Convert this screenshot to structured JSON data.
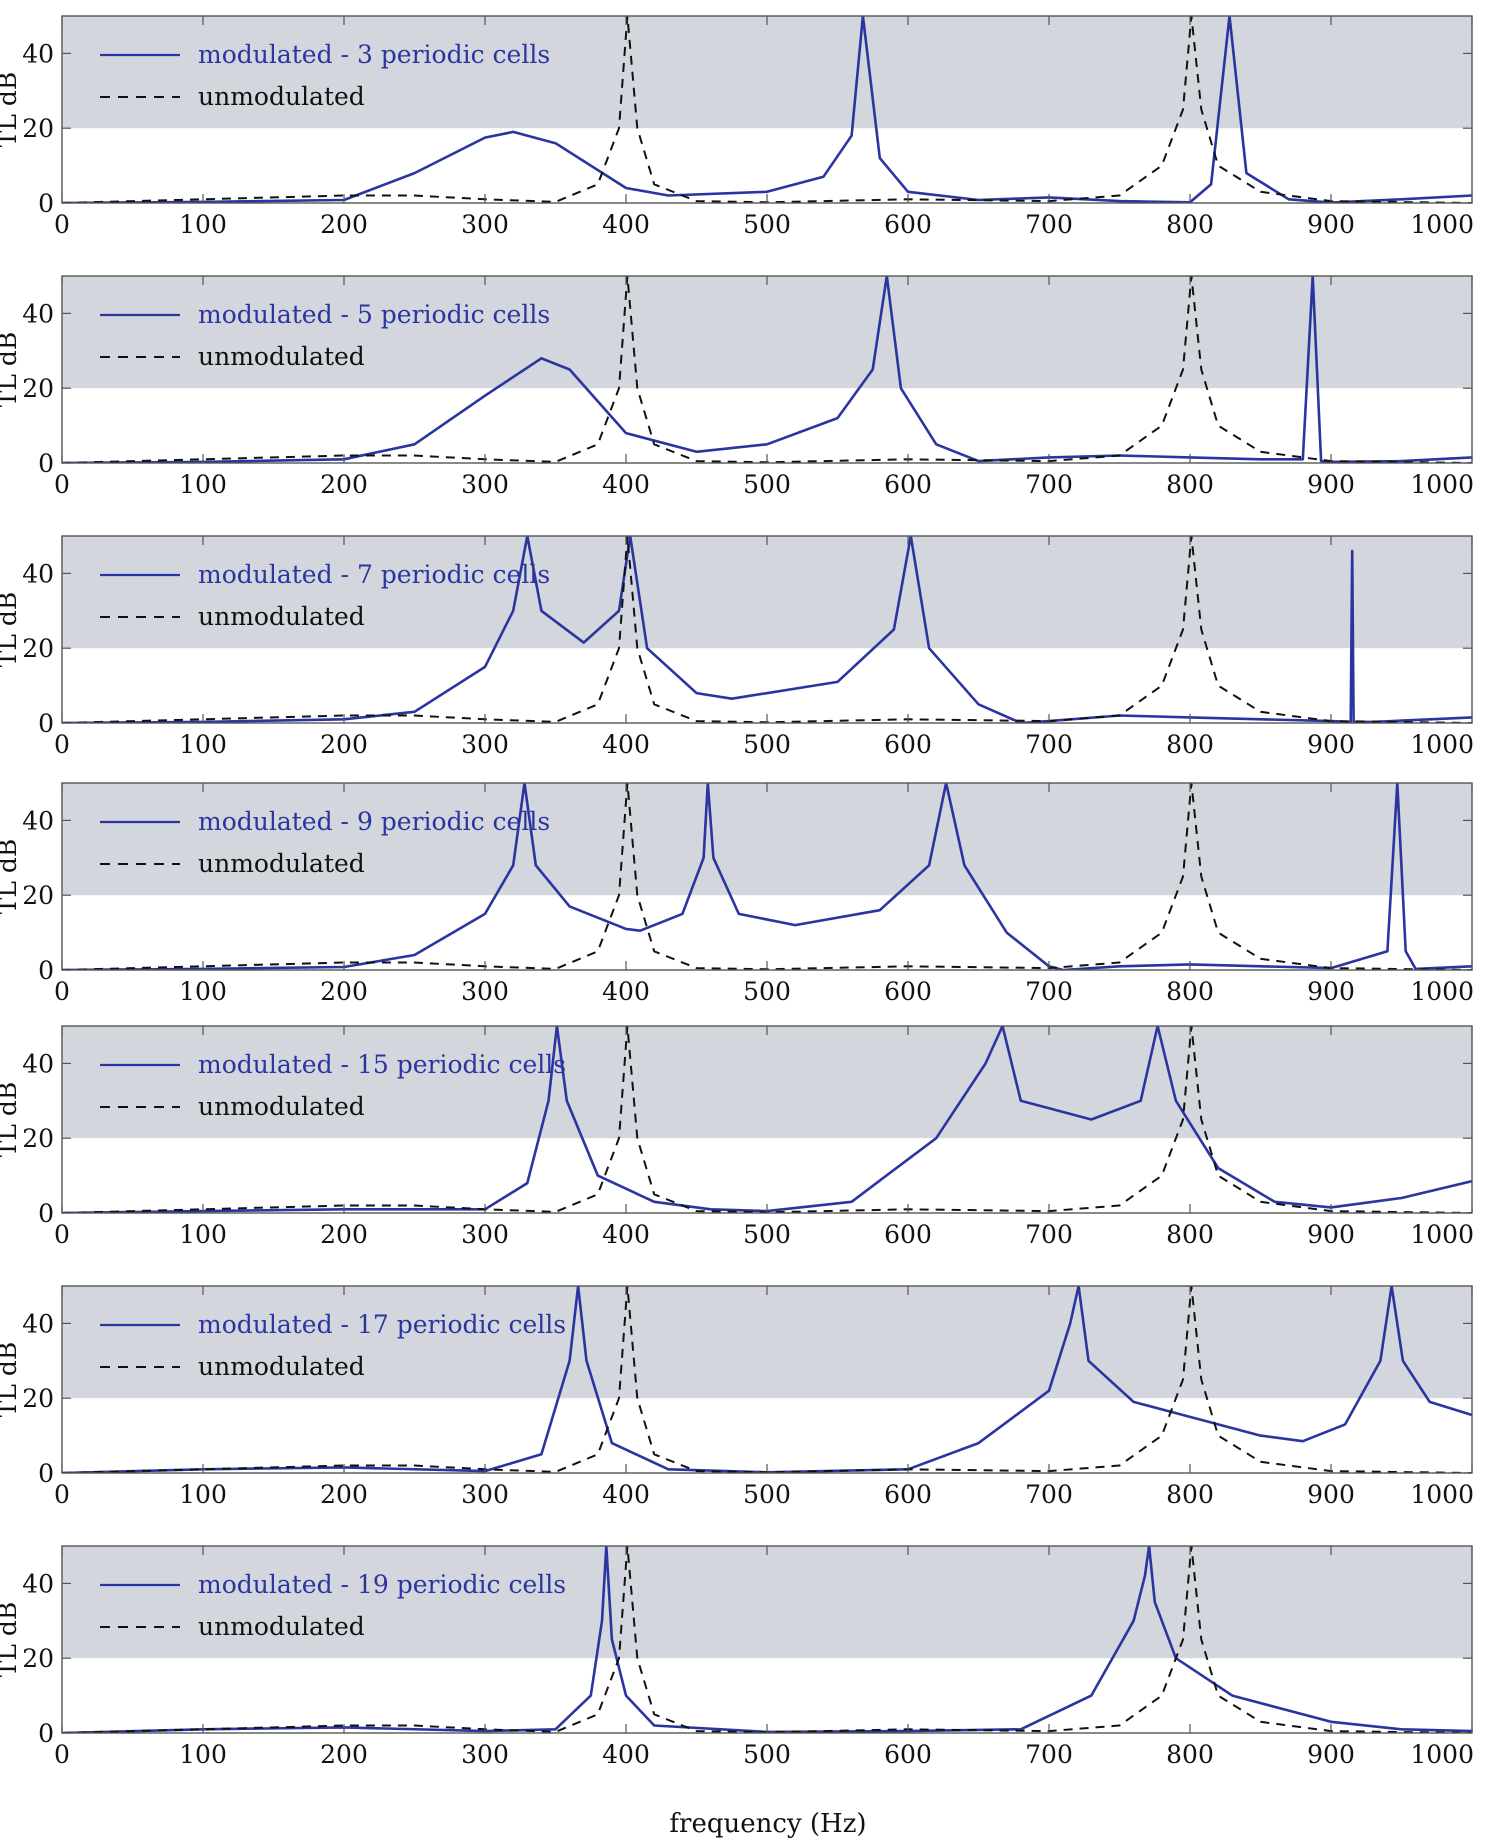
{
  "colors": {
    "modulated": "#2a35a0",
    "unmodulated": "#111111",
    "band": "#d3d6dc",
    "axis": "#555555"
  },
  "xlabel": "frequency (Hz)",
  "chart_data": [
    {
      "type": "line",
      "xlabel": "",
      "ylabel": "TL  dB",
      "xlim": [
        0,
        1000
      ],
      "ylim": [
        0,
        50
      ],
      "xticks": [
        0,
        100,
        200,
        300,
        400,
        500,
        600,
        700,
        800,
        900,
        1000
      ],
      "yticks": [
        0,
        20,
        40
      ],
      "shaded_band": [
        20,
        50
      ],
      "legend_position": "top-left",
      "series": [
        {
          "name": "modulated - 3 periodic cells",
          "style": "solid",
          "x": [
            0,
            100,
            200,
            250,
            300,
            320,
            350,
            400,
            430,
            500,
            540,
            560,
            568,
            580,
            600,
            650,
            700,
            750,
            800,
            815,
            828,
            840,
            870,
            900,
            950,
            1000
          ],
          "y": [
            0,
            0.3,
            0.8,
            8,
            17.5,
            19,
            16,
            4,
            2,
            3,
            7,
            18,
            50,
            12,
            3,
            0.8,
            1.5,
            0.5,
            0.2,
            5,
            50,
            8,
            1,
            0.1,
            1,
            2
          ]
        },
        {
          "name": "unmodulated",
          "style": "dashed",
          "x": [
            0,
            100,
            200,
            250,
            300,
            350,
            380,
            395,
            401,
            408,
            420,
            450,
            500,
            600,
            700,
            750,
            780,
            795,
            801,
            808,
            820,
            850,
            900,
            1000
          ],
          "y": [
            0,
            1,
            2,
            2,
            1,
            0.3,
            5,
            20,
            50,
            20,
            5,
            0.5,
            0.2,
            1,
            0.5,
            2,
            10,
            25,
            50,
            25,
            10,
            3,
            0.5,
            0
          ]
        }
      ]
    },
    {
      "type": "line",
      "xlabel": "",
      "ylabel": "TL  dB",
      "xlim": [
        0,
        1000
      ],
      "ylim": [
        0,
        50
      ],
      "xticks": [
        0,
        100,
        200,
        300,
        400,
        500,
        600,
        700,
        800,
        900,
        1000
      ],
      "yticks": [
        0,
        20,
        40
      ],
      "shaded_band": [
        20,
        50
      ],
      "legend_position": "top-left",
      "series": [
        {
          "name": "modulated - 5 periodic cells",
          "style": "solid",
          "x": [
            0,
            100,
            200,
            250,
            300,
            340,
            360,
            400,
            450,
            500,
            550,
            575,
            585,
            595,
            620,
            650,
            700,
            750,
            800,
            850,
            880,
            887,
            893,
            900,
            950,
            1000
          ],
          "y": [
            0,
            0.3,
            1,
            5,
            18,
            28,
            25,
            8,
            3,
            5,
            12,
            25,
            50,
            20,
            5,
            0.5,
            1.5,
            2,
            1.5,
            1,
            1,
            50,
            0.5,
            0.3,
            0.5,
            1.5
          ]
        },
        {
          "name": "unmodulated",
          "style": "dashed",
          "x": [
            0,
            100,
            200,
            250,
            300,
            350,
            380,
            395,
            401,
            408,
            420,
            450,
            500,
            600,
            700,
            750,
            780,
            795,
            801,
            808,
            820,
            850,
            900,
            1000
          ],
          "y": [
            0,
            1,
            2,
            2,
            1,
            0.3,
            5,
            20,
            50,
            20,
            5,
            0.5,
            0.2,
            1,
            0.5,
            2,
            10,
            25,
            50,
            25,
            10,
            3,
            0.5,
            0
          ]
        }
      ]
    },
    {
      "type": "line",
      "xlabel": "",
      "ylabel": "TL  dB",
      "xlim": [
        0,
        1000
      ],
      "ylim": [
        0,
        50
      ],
      "xticks": [
        0,
        100,
        200,
        300,
        400,
        500,
        600,
        700,
        800,
        900,
        1000
      ],
      "yticks": [
        0,
        20,
        40
      ],
      "shaded_band": [
        20,
        50
      ],
      "legend_position": "top-left",
      "series": [
        {
          "name": "modulated - 7 periodic cells",
          "style": "solid",
          "x": [
            0,
            100,
            200,
            250,
            300,
            320,
            330,
            340,
            370,
            395,
            403,
            415,
            450,
            475,
            550,
            590,
            602,
            615,
            650,
            680,
            700,
            750,
            800,
            900,
            914,
            915,
            916,
            930,
            1000
          ],
          "y": [
            0,
            0.3,
            1,
            3,
            15,
            30,
            50,
            30,
            21.5,
            30,
            50,
            20,
            8,
            6.5,
            11,
            25,
            50,
            20,
            5,
            0,
            0.5,
            2,
            1.5,
            0.5,
            0.3,
            46,
            0.3,
            0.3,
            1.5
          ]
        },
        {
          "name": "unmodulated",
          "style": "dashed",
          "x": [
            0,
            100,
            200,
            250,
            300,
            350,
            380,
            395,
            401,
            408,
            420,
            450,
            500,
            600,
            700,
            750,
            780,
            795,
            801,
            808,
            820,
            850,
            900,
            1000
          ],
          "y": [
            0,
            1,
            2,
            2,
            1,
            0.3,
            5,
            20,
            50,
            20,
            5,
            0.5,
            0.2,
            1,
            0.5,
            2,
            10,
            25,
            50,
            25,
            10,
            3,
            0.5,
            0
          ]
        }
      ]
    },
    {
      "type": "line",
      "xlabel": "",
      "ylabel": "TL  dB",
      "xlim": [
        0,
        1000
      ],
      "ylim": [
        0,
        50
      ],
      "xticks": [
        0,
        100,
        200,
        300,
        400,
        500,
        600,
        700,
        800,
        900,
        1000
      ],
      "yticks": [
        0,
        20,
        40
      ],
      "shaded_band": [
        20,
        50
      ],
      "legend_position": "top-left",
      "series": [
        {
          "name": "modulated - 9 periodic cells",
          "style": "solid",
          "x": [
            0,
            100,
            200,
            250,
            300,
            320,
            328,
            336,
            360,
            400,
            410,
            440,
            455,
            458,
            462,
            480,
            520,
            580,
            615,
            627,
            640,
            670,
            700,
            710,
            750,
            800,
            900,
            940,
            947,
            953,
            960,
            1000
          ],
          "y": [
            0,
            0.3,
            0.8,
            4,
            15,
            28,
            50,
            28,
            17,
            11,
            10.5,
            15,
            30,
            50,
            30,
            15,
            12,
            16,
            28,
            50,
            28,
            10,
            1,
            0,
            1,
            1.5,
            0.5,
            5,
            50,
            5,
            0.3,
            1
          ]
        },
        {
          "name": "unmodulated",
          "style": "dashed",
          "x": [
            0,
            100,
            200,
            250,
            300,
            350,
            380,
            395,
            401,
            408,
            420,
            450,
            500,
            600,
            700,
            750,
            780,
            795,
            801,
            808,
            820,
            850,
            900,
            1000
          ],
          "y": [
            0,
            1,
            2,
            2,
            1,
            0.3,
            5,
            20,
            50,
            20,
            5,
            0.5,
            0.2,
            1,
            0.5,
            2,
            10,
            25,
            50,
            25,
            10,
            3,
            0.5,
            0
          ]
        }
      ]
    },
    {
      "type": "line",
      "xlabel": "",
      "ylabel": "TL  dB",
      "xlim": [
        0,
        1000
      ],
      "ylim": [
        0,
        50
      ],
      "xticks": [
        0,
        100,
        200,
        300,
        400,
        500,
        600,
        700,
        800,
        900,
        1000
      ],
      "yticks": [
        0,
        20,
        40
      ],
      "shaded_band": [
        20,
        50
      ],
      "legend_position": "top-left",
      "series": [
        {
          "name": "modulated - 15 periodic cells",
          "style": "solid",
          "x": [
            0,
            100,
            200,
            300,
            330,
            345,
            351,
            358,
            380,
            420,
            460,
            500,
            560,
            620,
            655,
            667,
            680,
            730,
            765,
            777,
            790,
            820,
            860,
            900,
            950,
            1000
          ],
          "y": [
            0,
            0.5,
            1,
            1,
            8,
            30,
            50,
            30,
            10,
            3,
            1,
            0.5,
            3,
            20,
            40,
            50,
            30,
            25,
            30,
            50,
            30,
            12,
            3,
            1.5,
            4,
            8.5
          ]
        },
        {
          "name": "unmodulated",
          "style": "dashed",
          "x": [
            0,
            100,
            200,
            250,
            300,
            350,
            380,
            395,
            401,
            408,
            420,
            450,
            500,
            600,
            700,
            750,
            780,
            795,
            801,
            808,
            820,
            850,
            900,
            1000
          ],
          "y": [
            0,
            1,
            2,
            2,
            1,
            0.3,
            5,
            20,
            50,
            20,
            5,
            0.5,
            0.2,
            1,
            0.5,
            2,
            10,
            25,
            50,
            25,
            10,
            3,
            0.5,
            0
          ]
        }
      ]
    },
    {
      "type": "line",
      "xlabel": "",
      "ylabel": "TL  dB",
      "xlim": [
        0,
        1000
      ],
      "ylim": [
        0,
        50
      ],
      "xticks": [
        0,
        100,
        200,
        300,
        400,
        500,
        600,
        700,
        800,
        900,
        1000
      ],
      "yticks": [
        0,
        20,
        40
      ],
      "shaded_band": [
        20,
        50
      ],
      "legend_position": "top-left",
      "series": [
        {
          "name": "modulated - 17 periodic cells",
          "style": "solid",
          "x": [
            0,
            100,
            200,
            300,
            340,
            360,
            366,
            372,
            390,
            430,
            500,
            600,
            650,
            700,
            715,
            721,
            728,
            760,
            800,
            850,
            880,
            910,
            935,
            943,
            951,
            970,
            1000
          ],
          "y": [
            0,
            1,
            1.5,
            0.5,
            5,
            30,
            50,
            30,
            8,
            1,
            0.2,
            1,
            8,
            22,
            40,
            50,
            30,
            19,
            15,
            10,
            8.5,
            13,
            30,
            50,
            30,
            19,
            15.5
          ]
        },
        {
          "name": "unmodulated",
          "style": "dashed",
          "x": [
            0,
            100,
            200,
            250,
            300,
            350,
            380,
            395,
            401,
            408,
            420,
            450,
            500,
            600,
            700,
            750,
            780,
            795,
            801,
            808,
            820,
            850,
            900,
            1000
          ],
          "y": [
            0,
            1,
            2,
            2,
            1,
            0.3,
            5,
            20,
            50,
            20,
            5,
            0.5,
            0.2,
            1,
            0.5,
            2,
            10,
            25,
            50,
            25,
            10,
            3,
            0.5,
            0
          ]
        }
      ]
    },
    {
      "type": "line",
      "xlabel": "frequency (Hz)",
      "ylabel": "TL  dB",
      "xlim": [
        0,
        1000
      ],
      "ylim": [
        0,
        50
      ],
      "xticks": [
        0,
        100,
        200,
        300,
        400,
        500,
        600,
        700,
        800,
        900,
        1000
      ],
      "yticks": [
        0,
        20,
        40
      ],
      "shaded_band": [
        20,
        50
      ],
      "legend_position": "top-left",
      "series": [
        {
          "name": "modulated - 19 periodic cells",
          "style": "solid",
          "x": [
            0,
            100,
            200,
            300,
            350,
            375,
            383,
            386,
            390,
            400,
            420,
            500,
            600,
            680,
            730,
            760,
            768,
            771,
            775,
            790,
            830,
            900,
            950,
            1000
          ],
          "y": [
            0,
            1,
            1.5,
            0.5,
            1,
            10,
            30,
            50,
            25,
            10,
            2,
            0.3,
            0.5,
            1,
            10,
            30,
            42,
            50,
            35,
            20,
            10,
            3,
            1,
            0.5
          ]
        },
        {
          "name": "unmodulated",
          "style": "dashed",
          "x": [
            0,
            100,
            200,
            250,
            300,
            350,
            380,
            395,
            401,
            408,
            420,
            450,
            500,
            600,
            700,
            750,
            780,
            795,
            801,
            808,
            820,
            850,
            900,
            1000
          ],
          "y": [
            0,
            1,
            2,
            2,
            1,
            0.3,
            5,
            20,
            50,
            20,
            5,
            0.5,
            0.2,
            1,
            0.5,
            2,
            10,
            25,
            50,
            25,
            10,
            3,
            0.5,
            0
          ]
        }
      ]
    }
  ]
}
